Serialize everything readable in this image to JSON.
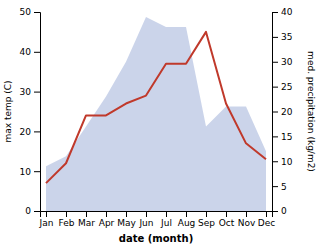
{
  "chart_data": {
    "type": "line",
    "categories": [
      "Jan",
      "Feb",
      "Mar",
      "Apr",
      "May",
      "Jun",
      "Jul",
      "Aug",
      "Sep",
      "Oct",
      "Nov",
      "Dec"
    ],
    "series": [
      {
        "type": "area",
        "axis": "y2",
        "color": "#c5cfe8",
        "values": [
          9,
          11,
          17,
          23,
          30,
          39,
          37,
          37,
          17,
          21,
          21,
          12
        ]
      },
      {
        "type": "line",
        "color": "#c0392b",
        "values": [
          7,
          12,
          24,
          24,
          27,
          29,
          37,
          37,
          45,
          27,
          17,
          13
        ]
      }
    ],
    "x_label": "date (month)",
    "y_label": "max temp (C)",
    "y2_label": "med. precipitation (kg/m2)",
    "ylim": [
      0,
      50
    ],
    "yticks": [
      0,
      10,
      20,
      30,
      40,
      50
    ],
    "y2lim": [
      0,
      40
    ],
    "y2ticks": [
      0,
      5,
      10,
      15,
      20,
      25,
      30,
      35,
      40
    ],
    "grid": false
  }
}
